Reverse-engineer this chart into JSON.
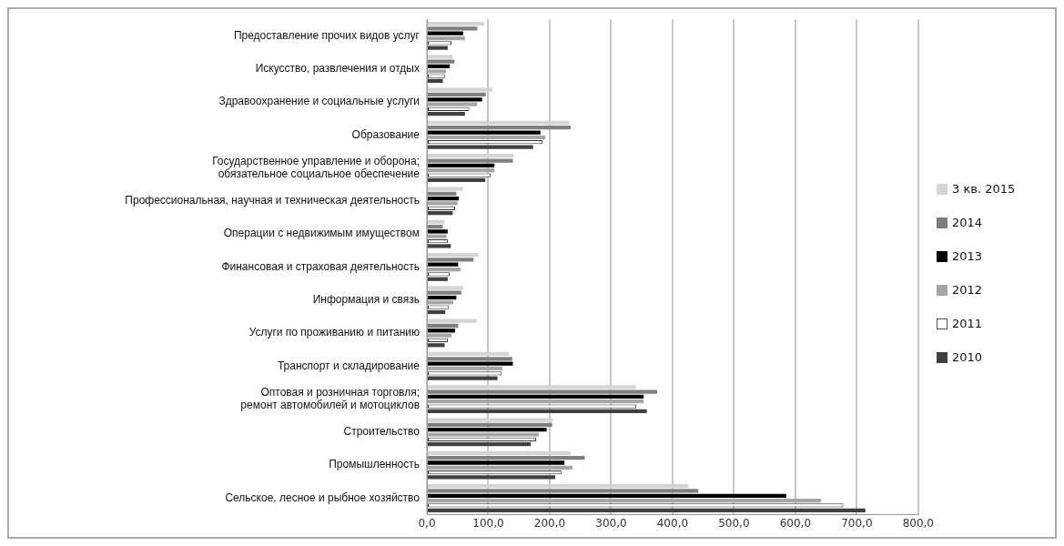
{
  "chart_data": {
    "type": "bar",
    "orientation": "horizontal",
    "categories": [
      "Предоставление прочих видов услуг",
      "Искусство, развлечения и отдых",
      "Здравоохранение и социальные услуги",
      "Образование",
      "Государственное управление и оборона;\nобязательное социальное обеспечение",
      "Профессиональная, научная и техническая деятельность",
      "Операции с недвижимым имуществом",
      "Финансовая и страховая деятельность",
      "Информация и связь",
      "Услуги по проживанию и питанию",
      "Транспорт и складирование",
      "Оптовая и розничная торговля;\nремонт автомобилей и мотоциклов",
      "Строительство",
      "Промышленность",
      "Сельское, лесное и рыбное хозяйство"
    ],
    "series": [
      {
        "name": "3 кв. 2015",
        "color": "#d4d4d4",
        "values": [
          93,
          42,
          107,
          232,
          141,
          59,
          29,
          84,
          59,
          81,
          134,
          340,
          205,
          234,
          426
        ]
      },
      {
        "name": "2014",
        "color": "#7f7f7f",
        "values": [
          82,
          45,
          96,
          234,
          140,
          48,
          26,
          76,
          56,
          51,
          139,
          375,
          204,
          257,
          442
        ]
      },
      {
        "name": "2013",
        "color": "#000000",
        "values": [
          59,
          37,
          90,
          185,
          110,
          52,
          34,
          51,
          48,
          46,
          140,
          353,
          195,
          224,
          585
        ]
      },
      {
        "name": "2012",
        "color": "#a6a6a6",
        "values": [
          62,
          31,
          82,
          193,
          110,
          50,
          32,
          55,
          43,
          40,
          123,
          353,
          182,
          237,
          642
        ]
      },
      {
        "name": "2011",
        "color": "#ffffff",
        "values": [
          40,
          30,
          69,
          188,
          104,
          46,
          34,
          37,
          36,
          34,
          122,
          341,
          178,
          219,
          678
        ]
      },
      {
        "name": "2010",
        "color": "#404040",
        "values": [
          34,
          26,
          62,
          173,
          95,
          42,
          39,
          34,
          30,
          29,
          115,
          358,
          169,
          209,
          714
        ]
      }
    ],
    "xlim": [
      0,
      800
    ],
    "xticks": [
      {
        "value": 0,
        "label": "0,0"
      },
      {
        "value": 100,
        "label": "100,0"
      },
      {
        "value": 200,
        "label": "200,0"
      },
      {
        "value": 300,
        "label": "300,0"
      },
      {
        "value": 400,
        "label": "400,0"
      },
      {
        "value": 500,
        "label": "500,0"
      },
      {
        "value": 600,
        "label": "600,0"
      },
      {
        "value": 700,
        "label": "700,0"
      },
      {
        "value": 800,
        "label": "800,0"
      }
    ],
    "grid": "x",
    "legend": "right"
  }
}
